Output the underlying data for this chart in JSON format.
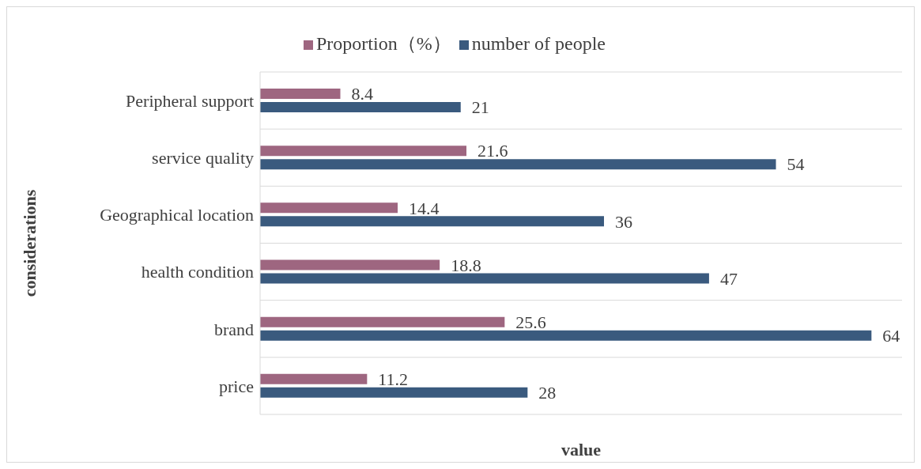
{
  "chart_data": {
    "type": "bar",
    "orientation": "horizontal",
    "xlabel": "value",
    "ylabel": "considerations",
    "categories": [
      "Peripheral support",
      "service quality",
      "Geographical location",
      "health condition",
      "brand",
      "price"
    ],
    "series": [
      {
        "name": "Proportion（%）",
        "color": "#9e6680",
        "values": [
          8.4,
          21.6,
          14.4,
          18.8,
          25.6,
          11.2
        ]
      },
      {
        "name": "number of people",
        "color": "#3a5a7e",
        "values": [
          21,
          54,
          36,
          47,
          64,
          28
        ]
      }
    ],
    "data_labels": true,
    "grid": "y",
    "legend": "top",
    "tick_labels": "y"
  }
}
